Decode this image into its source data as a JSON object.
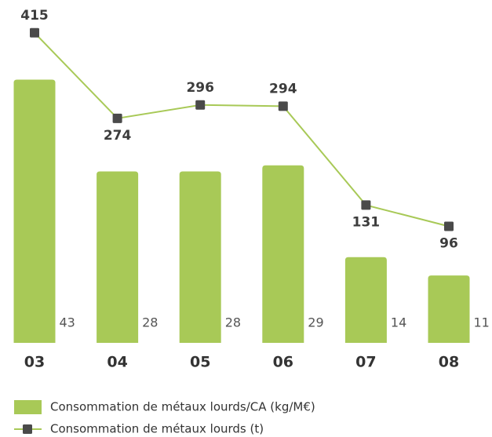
{
  "chart_data": {
    "type": "bar",
    "categories": [
      "03",
      "04",
      "05",
      "06",
      "07",
      "08"
    ],
    "ylim": [
      0,
      56
    ],
    "y2lim": [
      -96,
      469
    ],
    "series": [
      {
        "name": "Consommation de métaux lourds/CA (kg/M€)",
        "type": "bar",
        "color": "#a8c957",
        "values": [
          43,
          28,
          28,
          29,
          14,
          11
        ]
      },
      {
        "name": "Consommation de métaux lourds (t)",
        "type": "line",
        "axis": "y2",
        "color": "#a8c957",
        "marker_color": "#4a4a4a",
        "values": [
          415,
          274,
          296,
          294,
          131,
          96
        ]
      }
    ]
  }
}
